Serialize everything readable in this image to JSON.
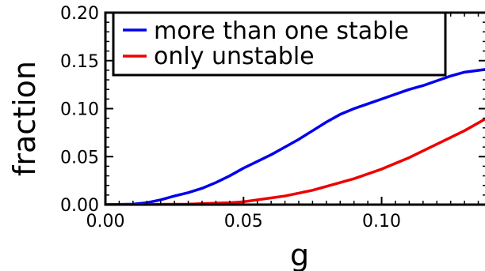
{
  "chart_data": {
    "type": "line",
    "xlabel": "g",
    "ylabel": "fraction",
    "xlim": [
      0.0,
      0.138
    ],
    "ylim": [
      0.0,
      0.2
    ],
    "xticks": [
      0.0,
      0.05,
      0.1
    ],
    "xtick_labels": [
      "0.00",
      "0.05",
      "0.10"
    ],
    "yticks": [
      0.0,
      0.05,
      0.1,
      0.15,
      0.2
    ],
    "ytick_labels": [
      "0.00",
      "0.05",
      "0.10",
      "0.15",
      "0.20"
    ],
    "grid": false,
    "legend_position": "top-left",
    "series": [
      {
        "name": "more than one stable",
        "color": "#0000ee",
        "x": [
          0.0,
          0.01,
          0.015,
          0.02,
          0.025,
          0.03,
          0.035,
          0.04,
          0.045,
          0.05,
          0.055,
          0.06,
          0.065,
          0.07,
          0.075,
          0.08,
          0.085,
          0.09,
          0.095,
          0.1,
          0.105,
          0.11,
          0.115,
          0.12,
          0.125,
          0.13,
          0.138
        ],
        "y": [
          0.0,
          0.0005,
          0.002,
          0.005,
          0.009,
          0.0125,
          0.017,
          0.023,
          0.03,
          0.038,
          0.045,
          0.052,
          0.06,
          0.068,
          0.077,
          0.086,
          0.094,
          0.1,
          0.105,
          0.11,
          0.115,
          0.12,
          0.124,
          0.129,
          0.134,
          0.138,
          0.141
        ]
      },
      {
        "name": "only unstable",
        "color": "#ee0000",
        "x": [
          0.0,
          0.03,
          0.035,
          0.04,
          0.045,
          0.05,
          0.055,
          0.06,
          0.065,
          0.07,
          0.075,
          0.08,
          0.085,
          0.09,
          0.095,
          0.1,
          0.105,
          0.11,
          0.115,
          0.12,
          0.125,
          0.13,
          0.138
        ],
        "y": [
          0.0,
          0.0005,
          0.001,
          0.0015,
          0.002,
          0.003,
          0.005,
          0.007,
          0.009,
          0.012,
          0.015,
          0.019,
          0.023,
          0.027,
          0.032,
          0.037,
          0.043,
          0.049,
          0.056,
          0.063,
          0.07,
          0.077,
          0.09
        ]
      }
    ]
  }
}
